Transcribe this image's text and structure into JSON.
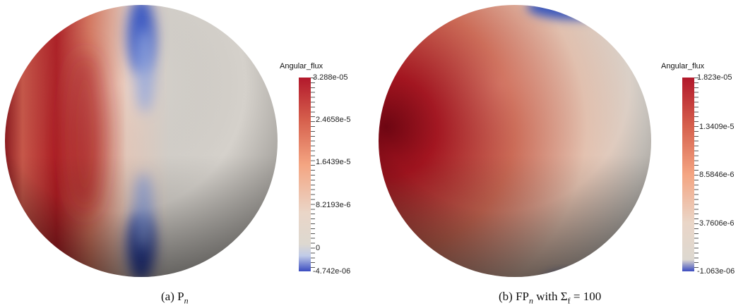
{
  "panels": [
    {
      "colorbar": {
        "title": "Angular_flux",
        "ticks": [
          "3.288e-05",
          "2.4658e-5",
          "1.6439e-5",
          "8.2193e-6",
          "0",
          "-4.742e-06"
        ],
        "max": 3.288e-05,
        "min": -4.742e-06
      },
      "caption": {
        "prefix": "(a) P",
        "sub": "n",
        "suffix": ""
      }
    },
    {
      "colorbar": {
        "title": "Angular_flux",
        "ticks": [
          "1.823e-05",
          "1.3409e-5",
          "8.5846e-6",
          "3.7606e-6",
          "-1.063e-06"
        ],
        "max": 1.823e-05,
        "min": -1.063e-06
      },
      "caption": {
        "prefix": "(b) FP",
        "sub": "n",
        "suffix": " with Σ",
        "sub2": "f",
        "suffix2": " = 100"
      }
    }
  ],
  "colors": {
    "high": "#b2182b",
    "mid": "#ddd8d0",
    "low": "#3b4cc0"
  }
}
